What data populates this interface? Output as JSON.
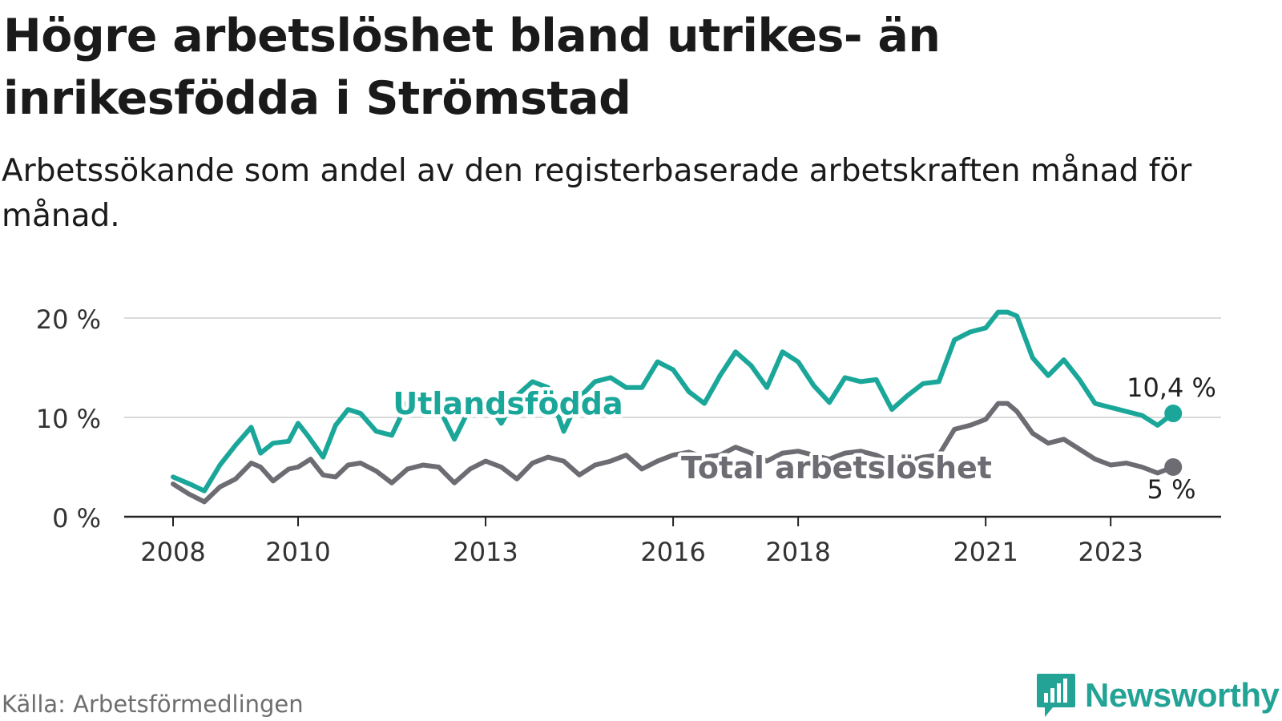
{
  "header": {
    "title": "Högre arbetslöshet bland utrikes- än inrikesfödda i Strömstad",
    "subtitle": "Arbetssökande som andel av den registerbaserade arbetskraften månad för månad."
  },
  "footer": {
    "source": "Källa: Arbetsförmedlingen",
    "brand": "Newsworthy"
  },
  "colors": {
    "utlandsfodda": "#1aa79a",
    "total": "#6d6c72",
    "grid": "#d9d9d9",
    "axis": "#222222",
    "brand": "#23a396"
  },
  "chart_data": {
    "type": "line",
    "title": "Högre arbetslöshet bland utrikes- än inrikesfödda i Strömstad",
    "xlabel": "",
    "ylabel": "",
    "xlim": [
      2008,
      2024.1
    ],
    "ylim": [
      0,
      21
    ],
    "y_ticks": [
      0,
      10,
      20
    ],
    "y_tick_labels": [
      "0 %",
      "10 %",
      "20 %"
    ],
    "x_ticks": [
      2008,
      2010,
      2013,
      2016,
      2018,
      2021,
      2023
    ],
    "x_tick_labels": [
      "2008",
      "2010",
      "2013",
      "2016",
      "2018",
      "2021",
      "2023"
    ],
    "grid": true,
    "series": [
      {
        "name": "Utlandsfödda",
        "label": "Utlandsfödda",
        "color": "#1aa79a",
        "end_label": "10,4 %",
        "x": [
          2008.0,
          2008.3,
          2008.5,
          2008.75,
          2009.0,
          2009.25,
          2009.4,
          2009.6,
          2009.85,
          2010.0,
          2010.15,
          2010.4,
          2010.6,
          2010.8,
          2011.0,
          2011.25,
          2011.5,
          2011.75,
          2012.0,
          2012.25,
          2012.5,
          2012.75,
          2013.0,
          2013.25,
          2013.5,
          2013.75,
          2014.0,
          2014.25,
          2014.5,
          2014.75,
          2015.0,
          2015.25,
          2015.5,
          2015.75,
          2016.0,
          2016.25,
          2016.5,
          2016.75,
          2017.0,
          2017.25,
          2017.5,
          2017.75,
          2018.0,
          2018.25,
          2018.5,
          2018.75,
          2019.0,
          2019.25,
          2019.5,
          2019.75,
          2020.0,
          2020.25,
          2020.5,
          2020.75,
          2021.0,
          2021.2,
          2021.35,
          2021.5,
          2021.75,
          2022.0,
          2022.25,
          2022.5,
          2022.75,
          2023.0,
          2023.25,
          2023.5,
          2023.75,
          2024.0
        ],
        "y": [
          4.0,
          3.2,
          2.6,
          5.2,
          7.2,
          9.0,
          6.4,
          7.4,
          7.6,
          9.4,
          8.2,
          6.0,
          9.2,
          10.8,
          10.4,
          8.6,
          8.2,
          11.5,
          12.5,
          11.0,
          7.8,
          11.0,
          11.8,
          9.4,
          12.2,
          13.6,
          13.0,
          8.6,
          12.0,
          13.6,
          14.0,
          13.0,
          13.0,
          15.6,
          14.8,
          12.6,
          11.4,
          14.2,
          16.6,
          15.2,
          13.0,
          16.6,
          15.6,
          13.2,
          11.5,
          14.0,
          13.6,
          13.8,
          10.8,
          12.2,
          13.4,
          13.6,
          17.8,
          18.6,
          19.0,
          20.6,
          20.6,
          20.2,
          16.0,
          14.2,
          15.8,
          13.8,
          11.4,
          11.0,
          10.6,
          10.2,
          9.2,
          10.4
        ]
      },
      {
        "name": "Total arbetslöshet",
        "label": "Total arbetslöshet",
        "color": "#6d6c72",
        "end_label": "5 %",
        "x": [
          2008.0,
          2008.25,
          2008.5,
          2008.75,
          2009.0,
          2009.25,
          2009.4,
          2009.6,
          2009.85,
          2010.0,
          2010.2,
          2010.4,
          2010.6,
          2010.8,
          2011.0,
          2011.25,
          2011.5,
          2011.75,
          2012.0,
          2012.25,
          2012.5,
          2012.75,
          2013.0,
          2013.25,
          2013.5,
          2013.75,
          2014.0,
          2014.25,
          2014.5,
          2014.75,
          2015.0,
          2015.25,
          2015.5,
          2015.75,
          2016.0,
          2016.25,
          2016.5,
          2016.75,
          2017.0,
          2017.25,
          2017.5,
          2017.75,
          2018.0,
          2018.25,
          2018.5,
          2018.75,
          2019.0,
          2019.25,
          2019.5,
          2019.75,
          2020.0,
          2020.25,
          2020.5,
          2020.75,
          2021.0,
          2021.2,
          2021.35,
          2021.5,
          2021.75,
          2022.0,
          2022.25,
          2022.5,
          2022.75,
          2023.0,
          2023.25,
          2023.5,
          2023.75,
          2024.0
        ],
        "y": [
          3.3,
          2.3,
          1.5,
          3.0,
          3.8,
          5.4,
          5.0,
          3.6,
          4.8,
          5.0,
          5.8,
          4.2,
          4.0,
          5.2,
          5.4,
          4.6,
          3.4,
          4.8,
          5.2,
          5.0,
          3.4,
          4.8,
          5.6,
          5.0,
          3.8,
          5.4,
          6.0,
          5.6,
          4.2,
          5.2,
          5.6,
          6.2,
          4.8,
          5.6,
          6.2,
          6.5,
          6.0,
          6.2,
          7.0,
          6.4,
          5.6,
          6.4,
          6.6,
          6.2,
          5.8,
          6.4,
          6.6,
          6.2,
          5.4,
          5.6,
          6.0,
          6.2,
          8.8,
          9.2,
          9.8,
          11.4,
          11.4,
          10.6,
          8.4,
          7.4,
          7.8,
          6.8,
          5.8,
          5.2,
          5.4,
          5.0,
          4.4,
          5.0
        ]
      }
    ]
  }
}
